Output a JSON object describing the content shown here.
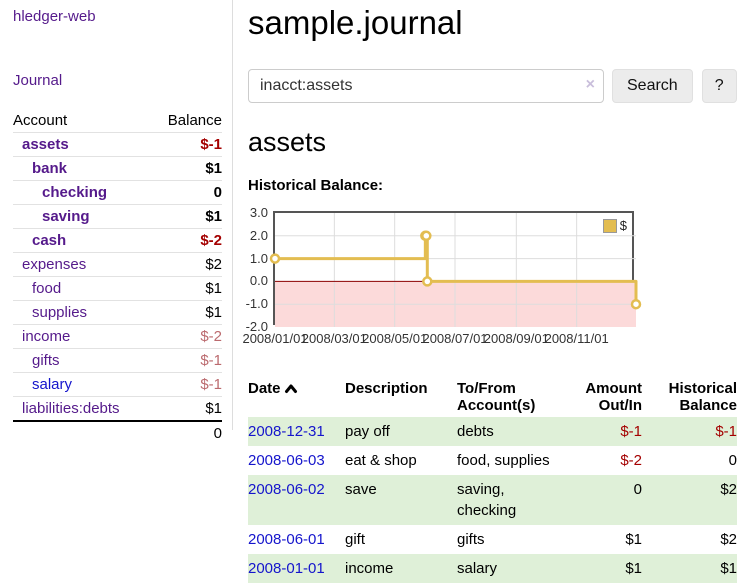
{
  "colors": {
    "purple": "#551a8b",
    "blue": "#1515cc",
    "neg": "#a40000",
    "negmuted": "#bb6a6e",
    "stripe": "#dff0d8",
    "gold": "#e3bd51",
    "pink": "#fcdada",
    "zeroline": "#8b0000",
    "grid": "#dddddd",
    "chart_border": "#555555",
    "btn_bg": "#ececec",
    "input_border": "#cccccc",
    "clear": "#c9bedb",
    "divider": "#dddddd"
  },
  "sidebar": {
    "brand": "hledger-web",
    "nav_journal": "Journal",
    "table": {
      "headers": {
        "account": "Account",
        "balance": "Balance"
      },
      "rows": [
        {
          "account": "assets",
          "balance": "$-1",
          "level": 1,
          "bold": true,
          "account_color": "purple",
          "balance_style": "neg"
        },
        {
          "account": "bank",
          "balance": "$1",
          "level": 2,
          "bold": true,
          "account_color": "purple",
          "balance_style": "plain"
        },
        {
          "account": "checking",
          "balance": "0",
          "level": 3,
          "bold": true,
          "account_color": "purple",
          "balance_style": "plain"
        },
        {
          "account": "saving",
          "balance": "$1",
          "level": 3,
          "bold": true,
          "account_color": "purple",
          "balance_style": "plain"
        },
        {
          "account": "cash",
          "balance": "$-2",
          "level": 2,
          "bold": true,
          "account_color": "purple",
          "balance_style": "neg"
        },
        {
          "account": "expenses",
          "balance": "$2",
          "level": 1,
          "bold": false,
          "account_color": "purple",
          "balance_style": "plain"
        },
        {
          "account": "food",
          "balance": "$1",
          "level": 2,
          "bold": false,
          "account_color": "purple",
          "balance_style": "plain"
        },
        {
          "account": "supplies",
          "balance": "$1",
          "level": 2,
          "bold": false,
          "account_color": "purple",
          "balance_style": "plain"
        },
        {
          "account": "income",
          "balance": "$-2",
          "level": 1,
          "bold": false,
          "account_color": "purple",
          "balance_style": "negmuted"
        },
        {
          "account": "gifts",
          "balance": "$-1",
          "level": 2,
          "bold": false,
          "account_color": "purple",
          "balance_style": "negmuted"
        },
        {
          "account": "salary",
          "balance": "$-1",
          "level": 2,
          "bold": false,
          "account_color": "blue",
          "balance_style": "negmuted"
        },
        {
          "account": "liabilities:debts",
          "balance": "$1",
          "level": 1,
          "bold": false,
          "account_color": "purple",
          "balance_style": "plain"
        }
      ],
      "total": "0"
    }
  },
  "main": {
    "title": "sample.journal",
    "search": {
      "value": "inacct:assets",
      "clear_icon": "×",
      "button_label": "Search",
      "help_label": "?"
    },
    "account_heading": "assets",
    "chart_title": "Historical Balance:"
  },
  "chart_data": {
    "type": "line",
    "title": "Historical Balance",
    "series": [
      {
        "name": "$",
        "step": true,
        "points": [
          [
            "2008-01-01",
            1
          ],
          [
            "2008-06-01",
            2
          ],
          [
            "2008-06-02",
            2
          ],
          [
            "2008-06-03",
            0
          ],
          [
            "2008-12-31",
            -1
          ]
        ]
      }
    ],
    "xlim": [
      "2008-01-01",
      "2008-12-31"
    ],
    "ylim": [
      -2,
      3
    ],
    "yticks": [
      3.0,
      2.0,
      1.0,
      0.0,
      -1.0,
      -2.0
    ],
    "xticks": [
      "2008/01/01",
      "2008/03/01",
      "2008/05/01",
      "2008/07/01",
      "2008/09/01",
      "2008/11/01"
    ],
    "legend": {
      "label": "$",
      "position": "top-right"
    },
    "negative_region_shaded": true,
    "grid": true
  },
  "register": {
    "headers": {
      "date": "Date",
      "description": "Description",
      "accounts": "To/From Account(s)",
      "amount": "Amount Out/In",
      "historical": "Historical Balance"
    },
    "sort": {
      "column": "date",
      "direction": "ascending"
    },
    "rows": [
      {
        "date": "2008-12-31",
        "description": "pay off",
        "accounts": "debts",
        "amount": "$-1",
        "amount_style": "neg",
        "historical": "$-1",
        "historical_style": "neg",
        "stripe": true
      },
      {
        "date": "2008-06-03",
        "description": "eat & shop",
        "accounts": "food, supplies",
        "amount": "$-2",
        "amount_style": "neg",
        "historical": "0",
        "historical_style": "plain",
        "stripe": false
      },
      {
        "date": "2008-06-02",
        "description": "save",
        "accounts": "saving, checking",
        "amount": "0",
        "amount_style": "plain",
        "historical": "$2",
        "historical_style": "plain",
        "stripe": true
      },
      {
        "date": "2008-06-01",
        "description": "gift",
        "accounts": "gifts",
        "amount": "$1",
        "amount_style": "plain",
        "historical": "$2",
        "historical_style": "plain",
        "stripe": false
      },
      {
        "date": "2008-01-01",
        "description": "income",
        "accounts": "salary",
        "amount": "$1",
        "amount_style": "plain",
        "historical": "$1",
        "historical_style": "plain",
        "stripe": true
      }
    ]
  }
}
